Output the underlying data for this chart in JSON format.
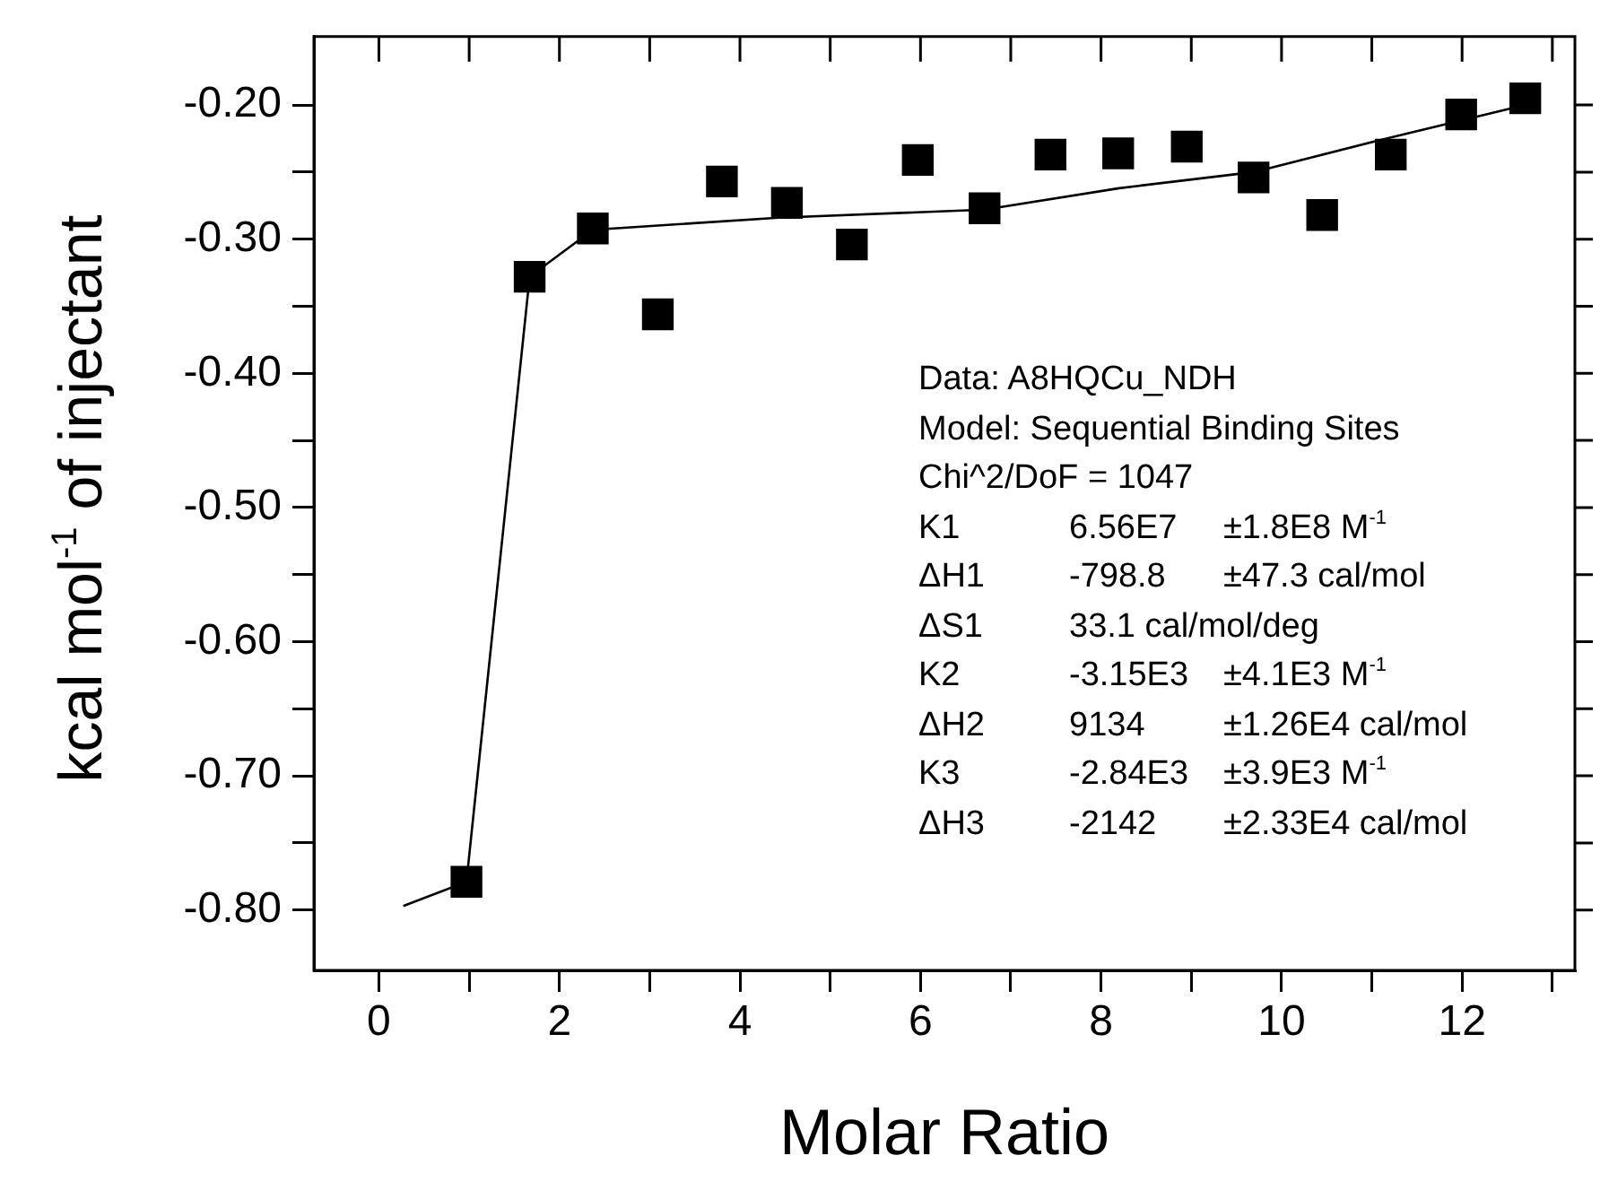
{
  "chart_data": {
    "type": "scatter",
    "xlabel": "Molar Ratio",
    "ylabel": "kcal mol$^{-1}$ of injectant",
    "xlim": [
      -0.72,
      13.25
    ],
    "ylim": [
      -0.845,
      -0.149
    ],
    "xticks": [
      0,
      {
        "value": 1,
        "label": null
      },
      2,
      {
        "value": 3,
        "label": null
      },
      4,
      {
        "value": 5,
        "label": null
      },
      6,
      {
        "value": 7,
        "label": null
      },
      8,
      {
        "value": 9,
        "label": null
      },
      10,
      {
        "value": 11,
        "label": null
      },
      12,
      {
        "value": 13,
        "label": null
      }
    ],
    "yticks": [
      {
        "value": -0.2,
        "label": "-0.20"
      },
      {
        "value": -0.25,
        "label": null
      },
      {
        "value": -0.3,
        "label": "-0.30"
      },
      {
        "value": -0.35,
        "label": null
      },
      {
        "value": -0.4,
        "label": "-0.40"
      },
      {
        "value": -0.45,
        "label": null
      },
      {
        "value": -0.5,
        "label": "-0.50"
      },
      {
        "value": -0.55,
        "label": null
      },
      {
        "value": -0.6,
        "label": "-0.60"
      },
      {
        "value": -0.65,
        "label": null
      },
      {
        "value": -0.7,
        "label": "-0.70"
      },
      {
        "value": -0.75,
        "label": null
      },
      {
        "value": -0.8,
        "label": "-0.80"
      }
    ],
    "grid": false,
    "legend": false,
    "series": [
      {
        "color": "#000000",
        "marker": "square",
        "x": [
          0.97,
          1.67,
          2.37,
          3.09,
          3.8,
          4.52,
          5.24,
          5.97,
          6.71,
          7.44,
          8.19,
          8.95,
          9.69,
          10.45,
          11.21,
          11.99,
          12.7
        ],
        "values": [
          -0.779,
          -0.328,
          -0.292,
          -0.356,
          -0.257,
          -0.273,
          -0.304,
          -0.241,
          -0.277,
          -0.237,
          -0.236,
          -0.231,
          -0.254,
          -0.282,
          -0.237,
          -0.207,
          -0.195
        ]
      },
      {
        "type": "line",
        "color": "#000000",
        "marker": "none",
        "x": [
          0.27,
          0.97,
          1.67,
          2.37,
          4.43,
          6.71,
          8.2,
          9.69,
          11.1,
          12.7
        ],
        "values": [
          -0.797,
          -0.779,
          -0.328,
          -0.293,
          -0.284,
          -0.278,
          -0.262,
          -0.25,
          -0.226,
          -0.2
        ]
      }
    ],
    "annotations": [
      "Data: A8HQCu_NDH",
      "Model: Sequential Binding Sites",
      "Chi^2/DoF = 1047",
      "K1\t6.56E7\t±1.8E8 M$^{-1}$",
      "ΔH1\t-798.8\t±47.3 cal/mol",
      "ΔS1\t33.1 cal/mol/deg",
      "K2\t-3.15E3\t±4.1E3 M$^{-1}$",
      "ΔH2\t9134\t±1.26E4 cal/mol",
      "K3\t-2.84E3\t±3.9E3 M$^{-1}$",
      "ΔH3\t-2142\t±2.33E4 cal/mol"
    ]
  }
}
